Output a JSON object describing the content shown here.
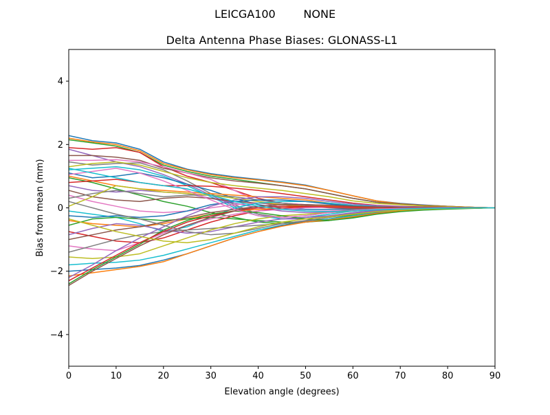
{
  "suptitle": "LEICGA100        NONE",
  "chart_data": {
    "type": "line",
    "title": "Delta Antenna Phase Biases: GLONASS-L1",
    "xlabel": "Elevation angle (degrees)",
    "ylabel": "Bias from mean (mm)",
    "xlim": [
      0,
      90
    ],
    "ylim": [
      -5,
      5
    ],
    "xticks": [
      "0",
      "10",
      "20",
      "30",
      "40",
      "50",
      "60",
      "70",
      "80",
      "90"
    ],
    "yticks": [
      "−4",
      "−2",
      "0",
      "2",
      "4"
    ],
    "xtick_values": [
      0,
      10,
      20,
      30,
      40,
      50,
      60,
      70,
      80,
      90
    ],
    "ytick_values": [
      -4,
      -2,
      0,
      2,
      4
    ],
    "grid": false,
    "legend": "none",
    "colors": [
      "#1f77b4",
      "#ff7f0e",
      "#2ca02c",
      "#d62728",
      "#9467bd",
      "#8c564b",
      "#e377c2",
      "#7f7f7f",
      "#bcbd22",
      "#17becf"
    ],
    "x": [
      0,
      5,
      10,
      15,
      20,
      25,
      30,
      35,
      40,
      45,
      50,
      55,
      60,
      65,
      70,
      75,
      80,
      85,
      90
    ],
    "series": [
      {
        "values": [
          2.28,
          2.12,
          2.05,
          1.85,
          1.45,
          1.22,
          1.08,
          0.98,
          0.9,
          0.82,
          0.72,
          0.55,
          0.38,
          0.22,
          0.14,
          0.09,
          0.05,
          0.02,
          0
        ]
      },
      {
        "values": [
          2.2,
          2.08,
          2.0,
          1.8,
          1.4,
          1.2,
          1.05,
          0.95,
          0.88,
          0.8,
          0.7,
          0.55,
          0.38,
          0.22,
          0.13,
          0.08,
          0.05,
          0.02,
          0
        ]
      },
      {
        "values": [
          2.15,
          2.05,
          1.95,
          1.75,
          1.35,
          1.15,
          1.0,
          0.9,
          0.8,
          0.7,
          0.6,
          0.45,
          0.3,
          0.18,
          0.12,
          0.07,
          0.04,
          0.02,
          0
        ]
      },
      {
        "values": [
          1.9,
          1.85,
          1.9,
          1.75,
          1.3,
          1.0,
          0.8,
          0.55,
          0.3,
          0.15,
          0.1,
          0.05,
          0.05,
          0.03,
          0.02,
          0.01,
          0,
          0,
          0
        ]
      },
      {
        "values": [
          1.85,
          1.65,
          1.45,
          1.3,
          1.05,
          0.75,
          0.4,
          0.05,
          -0.2,
          -0.35,
          -0.35,
          -0.25,
          -0.15,
          -0.08,
          -0.05,
          -0.03,
          -0.02,
          -0.01,
          0
        ]
      },
      {
        "values": [
          1.65,
          1.65,
          1.6,
          1.5,
          1.25,
          1.1,
          0.95,
          0.85,
          0.78,
          0.7,
          0.6,
          0.45,
          0.3,
          0.18,
          0.12,
          0.08,
          0.05,
          0.02,
          0
        ]
      },
      {
        "values": [
          1.5,
          1.5,
          1.52,
          1.45,
          1.3,
          1.1,
          0.9,
          0.55,
          0.2,
          0.0,
          -0.1,
          -0.1,
          -0.05,
          -0.02,
          0,
          0,
          0,
          0,
          0
        ]
      },
      {
        "values": [
          1.45,
          1.35,
          1.4,
          1.42,
          1.2,
          0.85,
          0.45,
          0.1,
          -0.2,
          -0.3,
          -0.25,
          -0.15,
          -0.05,
          0,
          0.02,
          0.02,
          0.01,
          0,
          0
        ]
      },
      {
        "values": [
          1.3,
          1.4,
          1.45,
          1.35,
          1.15,
          0.95,
          0.8,
          0.7,
          0.62,
          0.55,
          0.45,
          0.35,
          0.22,
          0.14,
          0.1,
          0.06,
          0.04,
          0.02,
          0
        ]
      },
      {
        "values": [
          1.2,
          1.25,
          1.3,
          1.2,
          1.0,
          0.7,
          0.35,
          0.0,
          -0.25,
          -0.35,
          -0.3,
          -0.2,
          -0.1,
          -0.05,
          -0.02,
          -0.01,
          0,
          0,
          0
        ]
      },
      {
        "values": [
          1.1,
          0.95,
          1.0,
          1.1,
          0.95,
          0.75,
          0.55,
          0.3,
          0.1,
          0.0,
          -0.05,
          -0.05,
          -0.03,
          -0.02,
          -0.01,
          0,
          0,
          0,
          0
        ]
      },
      {
        "values": [
          1.0,
          0.85,
          0.7,
          0.6,
          0.55,
          0.5,
          0.45,
          0.4,
          0.35,
          0.3,
          0.25,
          0.15,
          0.08,
          0.04,
          0.02,
          0.01,
          0,
          0,
          0
        ]
      },
      {
        "values": [
          0.95,
          0.8,
          0.6,
          0.4,
          0.2,
          0.05,
          -0.15,
          -0.3,
          -0.45,
          -0.5,
          -0.45,
          -0.35,
          -0.22,
          -0.12,
          -0.07,
          -0.04,
          -0.02,
          -0.01,
          0
        ]
      },
      {
        "values": [
          0.8,
          0.85,
          0.9,
          0.8,
          0.7,
          0.7,
          0.68,
          0.62,
          0.55,
          0.45,
          0.35,
          0.25,
          0.15,
          0.08,
          0.05,
          0.03,
          0.02,
          0.01,
          0
        ]
      },
      {
        "values": [
          0.7,
          0.55,
          0.5,
          0.55,
          0.5,
          0.45,
          0.3,
          0.15,
          0.0,
          -0.1,
          -0.15,
          -0.15,
          -0.1,
          -0.06,
          -0.04,
          -0.02,
          -0.01,
          0,
          0
        ]
      },
      {
        "values": [
          0.55,
          0.35,
          0.25,
          0.2,
          0.3,
          0.35,
          0.3,
          0.2,
          0.15,
          0.1,
          0.05,
          0.0,
          -0.02,
          -0.02,
          -0.01,
          0,
          0,
          0,
          0
        ]
      },
      {
        "values": [
          0.4,
          0.2,
          0.05,
          -0.1,
          -0.15,
          -0.1,
          0.0,
          0.1,
          0.15,
          0.15,
          0.1,
          0.05,
          0.02,
          0.01,
          0,
          0,
          0,
          0,
          0
        ]
      },
      {
        "values": [
          0.3,
          0.45,
          0.55,
          0.45,
          0.35,
          0.4,
          0.4,
          0.35,
          0.25,
          0.15,
          0.08,
          0.04,
          0.02,
          0.01,
          0,
          0,
          0,
          0,
          0
        ]
      },
      {
        "values": [
          0.05,
          0.35,
          0.7,
          0.6,
          0.5,
          0.45,
          0.4,
          0.3,
          0.2,
          0.1,
          0.05,
          0.02,
          0.01,
          0,
          0,
          0,
          0,
          0,
          0
        ]
      },
      {
        "values": [
          -0.1,
          -0.2,
          -0.3,
          -0.5,
          -0.75,
          -0.6,
          -0.3,
          0.0,
          0.15,
          0.2,
          0.2,
          0.15,
          0.08,
          0.05,
          0.03,
          0.02,
          0.01,
          0,
          0
        ]
      },
      {
        "values": [
          -0.25,
          -0.3,
          -0.25,
          -0.3,
          -0.25,
          -0.1,
          0.1,
          0.2,
          0.25,
          0.25,
          0.2,
          0.12,
          0.06,
          0.03,
          0.02,
          0.01,
          0,
          0,
          0
        ]
      },
      {
        "values": [
          -0.4,
          -0.5,
          -0.55,
          -0.6,
          -0.5,
          -0.35,
          -0.2,
          -0.1,
          -0.05,
          0.0,
          0.05,
          0.05,
          0.03,
          0.02,
          0.01,
          0,
          0,
          0,
          0
        ]
      },
      {
        "values": [
          -0.55,
          -0.35,
          -0.3,
          -0.35,
          -0.4,
          -0.35,
          -0.3,
          -0.35,
          -0.4,
          -0.45,
          -0.45,
          -0.4,
          -0.3,
          -0.18,
          -0.1,
          -0.06,
          -0.03,
          -0.01,
          0
        ]
      },
      {
        "values": [
          -0.75,
          -0.9,
          -1.05,
          -1.1,
          -0.95,
          -0.7,
          -0.45,
          -0.25,
          -0.1,
          0.0,
          0.02,
          0.02,
          0.01,
          0.01,
          0,
          0,
          0,
          0,
          0
        ]
      },
      {
        "values": [
          -0.85,
          -0.65,
          -0.5,
          -0.55,
          -0.7,
          -0.8,
          -0.75,
          -0.6,
          -0.45,
          -0.35,
          -0.3,
          -0.25,
          -0.18,
          -0.1,
          -0.06,
          -0.04,
          -0.02,
          -0.01,
          0
        ]
      },
      {
        "values": [
          -1.0,
          -0.85,
          -0.7,
          -0.6,
          -0.45,
          -0.3,
          -0.15,
          -0.05,
          0.05,
          0.1,
          0.1,
          0.08,
          0.05,
          0.03,
          0.02,
          0.01,
          0,
          0,
          0
        ]
      },
      {
        "values": [
          -1.2,
          -1.3,
          -1.35,
          -1.1,
          -0.8,
          -0.55,
          -0.35,
          -0.2,
          -0.1,
          -0.05,
          0.0,
          0.02,
          0.02,
          0.01,
          0,
          0,
          0,
          0,
          0
        ]
      },
      {
        "values": [
          -1.4,
          -1.2,
          -1.0,
          -0.85,
          -0.75,
          -0.7,
          -0.65,
          -0.6,
          -0.55,
          -0.5,
          -0.42,
          -0.35,
          -0.25,
          -0.15,
          -0.09,
          -0.05,
          -0.03,
          -0.01,
          0
        ]
      },
      {
        "values": [
          -1.55,
          -1.6,
          -1.55,
          -1.45,
          -1.2,
          -0.95,
          -0.7,
          -0.5,
          -0.35,
          -0.25,
          -0.2,
          -0.15,
          -0.1,
          -0.06,
          -0.04,
          -0.02,
          -0.01,
          0,
          0
        ]
      },
      {
        "values": [
          -1.8,
          -1.75,
          -1.72,
          -1.65,
          -1.5,
          -1.3,
          -1.1,
          -0.9,
          -0.7,
          -0.55,
          -0.45,
          -0.35,
          -0.25,
          -0.15,
          -0.09,
          -0.05,
          -0.03,
          -0.01,
          0
        ]
      },
      {
        "values": [
          -2.0,
          -1.95,
          -1.9,
          -1.82,
          -1.65,
          -1.45,
          -1.2,
          -0.95,
          -0.75,
          -0.55,
          -0.45,
          -0.38,
          -0.28,
          -0.16,
          -0.1,
          -0.06,
          -0.03,
          -0.01,
          0
        ]
      },
      {
        "values": [
          -2.15,
          -2.05,
          -1.95,
          -1.85,
          -1.7,
          -1.45,
          -1.2,
          -0.95,
          -0.75,
          -0.58,
          -0.45,
          -0.38,
          -0.28,
          -0.17,
          -0.1,
          -0.06,
          -0.03,
          -0.01,
          0
        ]
      },
      {
        "values": [
          -2.4,
          -1.95,
          -1.55,
          -1.15,
          -0.7,
          -0.4,
          -0.2,
          -0.1,
          -0.15,
          -0.25,
          -0.35,
          -0.4,
          -0.32,
          -0.2,
          -0.12,
          -0.07,
          -0.04,
          -0.02,
          0
        ]
      },
      {
        "values": [
          -2.3,
          -1.9,
          -1.5,
          -1.1,
          -0.75,
          -0.45,
          -0.25,
          -0.1,
          0.0,
          0.05,
          0.05,
          0.03,
          0.02,
          0.01,
          0,
          0,
          0,
          0,
          0
        ]
      },
      {
        "values": [
          -2.2,
          -1.8,
          -1.35,
          -0.95,
          -0.6,
          -0.25,
          0.05,
          0.25,
          0.35,
          0.35,
          0.3,
          0.2,
          0.12,
          0.07,
          0.04,
          0.02,
          0.01,
          0,
          0
        ]
      },
      {
        "values": [
          -2.45,
          -2.0,
          -1.6,
          -1.2,
          -0.85,
          -0.55,
          -0.3,
          -0.1,
          0.05,
          0.1,
          0.1,
          0.08,
          0.05,
          0.03,
          0.02,
          0.01,
          0,
          0,
          0
        ]
      },
      {
        "values": [
          1.05,
          1.15,
          1.25,
          1.1,
          0.85,
          0.55,
          0.25,
          -0.05,
          -0.25,
          -0.3,
          -0.25,
          -0.15,
          -0.08,
          -0.04,
          -0.02,
          -0.01,
          0,
          0,
          0
        ]
      },
      {
        "values": [
          0.2,
          0.0,
          -0.2,
          -0.35,
          -0.55,
          -0.75,
          -0.85,
          -0.8,
          -0.65,
          -0.5,
          -0.4,
          -0.3,
          -0.2,
          -0.12,
          -0.07,
          -0.04,
          -0.02,
          -0.01,
          0
        ]
      },
      {
        "values": [
          -0.35,
          -0.55,
          -0.75,
          -0.9,
          -1.05,
          -1.1,
          -1.0,
          -0.8,
          -0.6,
          -0.45,
          -0.35,
          -0.28,
          -0.2,
          -0.12,
          -0.07,
          -0.04,
          -0.02,
          -0.01,
          0
        ]
      },
      {
        "values": [
          1.25,
          1.1,
          0.95,
          0.8,
          0.7,
          0.6,
          0.4,
          0.2,
          0.05,
          -0.05,
          -0.1,
          -0.12,
          -0.1,
          -0.06,
          -0.04,
          -0.02,
          -0.01,
          0,
          0
        ]
      }
    ]
  }
}
